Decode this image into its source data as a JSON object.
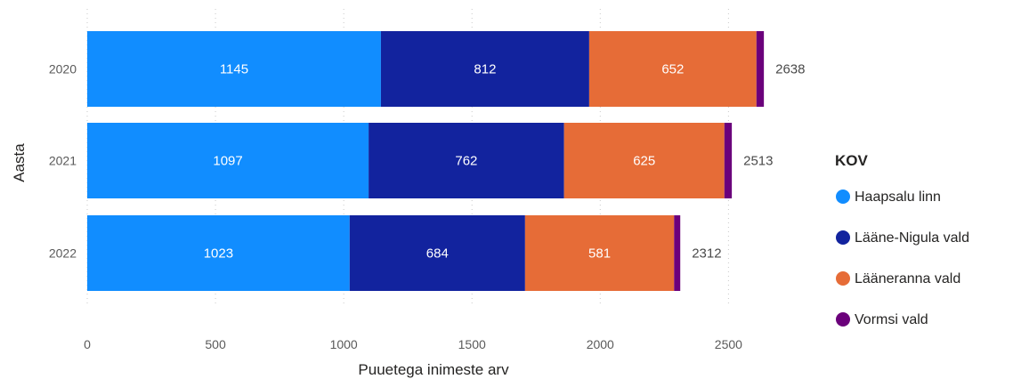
{
  "chart_data": {
    "type": "bar",
    "orientation": "horizontal",
    "stacked": true,
    "categories": [
      "2020",
      "2021",
      "2022"
    ],
    "series": [
      {
        "name": "Haapsalu linn",
        "color": "#118dff",
        "values": [
          1145,
          1097,
          1023
        ]
      },
      {
        "name": "Lääne-Nigula vald",
        "color": "#12239e",
        "values": [
          812,
          762,
          684
        ]
      },
      {
        "name": "Läänerann​a vald",
        "color": "#e66c37",
        "values": [
          652,
          625,
          581
        ]
      },
      {
        "name": "Vormsi vald",
        "color": "#6b007b",
        "values": [
          29,
          29,
          24
        ]
      }
    ],
    "totals": [
      2638,
      2513,
      2312
    ],
    "xlabel": "Puuetega inimeste arv",
    "ylabel": "Aasta",
    "xlim": [
      0,
      2700
    ],
    "xticks": [
      0,
      500,
      1000,
      1500,
      2000,
      2500
    ],
    "grid": true,
    "legend": {
      "title": "KOV",
      "placement": "right"
    }
  }
}
